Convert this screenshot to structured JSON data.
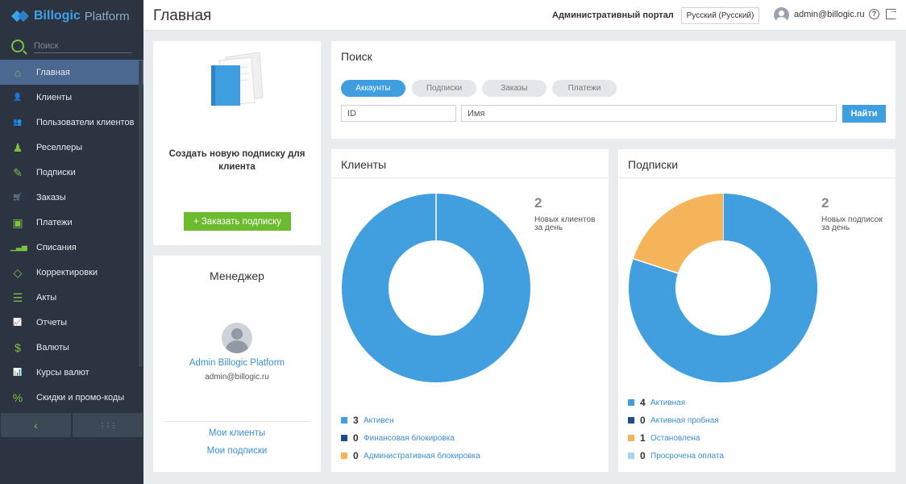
{
  "sidebar": {
    "logo_brand": "Billogic",
    "logo_product": "Platform",
    "search_placeholder": "Поиск",
    "items": [
      {
        "label": "Главная",
        "icon": "home-icon",
        "glyph": "⌂"
      },
      {
        "label": "Клиенты",
        "icon": "user-icon",
        "glyph": "👤"
      },
      {
        "label": "Пользователи клиентов",
        "icon": "users-icon",
        "glyph": "👥"
      },
      {
        "label": "Реселлеры",
        "icon": "reseller-icon",
        "glyph": "♟"
      },
      {
        "label": "Подписки",
        "icon": "subscription-icon",
        "glyph": "✎"
      },
      {
        "label": "Заказы",
        "icon": "cart-icon",
        "glyph": "🛒"
      },
      {
        "label": "Платежи",
        "icon": "wallet-icon",
        "glyph": "▣"
      },
      {
        "label": "Списания",
        "icon": "bars-icon",
        "glyph": "▁▃▅"
      },
      {
        "label": "Корректировки",
        "icon": "eraser-icon",
        "glyph": "◇"
      },
      {
        "label": "Акты",
        "icon": "document-list-icon",
        "glyph": "☰"
      },
      {
        "label": "Отчеты",
        "icon": "line-chart-icon",
        "glyph": "📈"
      },
      {
        "label": "Валюты",
        "icon": "dollar-icon",
        "glyph": "$"
      },
      {
        "label": "Курсы валют",
        "icon": "exchange-chart-icon",
        "glyph": "📊"
      },
      {
        "label": "Скидки и промо-коды",
        "icon": "percent-icon",
        "glyph": "%"
      }
    ],
    "footer_left_glyph": "‹",
    "footer_right_glyph": "⋮⋮⋮"
  },
  "header": {
    "title": "Главная",
    "portal": "Административный портал",
    "language": "Русский (Русский)",
    "user_email": "admin@billogic.ru",
    "help_glyph": "?"
  },
  "create_card": {
    "text": "Создать новую подписку для клиента",
    "button": "+ Заказать подписку"
  },
  "manager": {
    "title": "Менеджер",
    "name": "Admin Billogic Platform",
    "email": "admin@billogic.ru",
    "link_clients": "Мои клиенты",
    "link_subscriptions": "Мои подписки"
  },
  "search": {
    "title": "Поиск",
    "tabs": [
      "Аккаунты",
      "Подписки",
      "Заказы",
      "Платежи"
    ],
    "active_tab": 0,
    "id_placeholder": "ID",
    "name_placeholder": "Имя",
    "button": "Найти"
  },
  "clients": {
    "title": "Клиенты",
    "kpi_value": "2",
    "kpi_label": "Новых клиентов за день",
    "legend": [
      {
        "count": "3",
        "label": "Активен",
        "color": "#419fdf"
      },
      {
        "count": "0",
        "label": "Финансовая блокировка",
        "color": "#1f4e8c"
      },
      {
        "count": "0",
        "label": "Административная блокировка",
        "color": "#f5b45a"
      }
    ]
  },
  "subscriptions": {
    "title": "Подписки",
    "kpi_value": "2",
    "kpi_label": "Новых подписок за день",
    "legend": [
      {
        "count": "4",
        "label": "Активная",
        "color": "#419fdf"
      },
      {
        "count": "0",
        "label": "Активная пробная",
        "color": "#1f4e8c"
      },
      {
        "count": "1",
        "label": "Остановлена",
        "color": "#f5b45a"
      },
      {
        "count": "0",
        "label": "Просрочена оплата",
        "color": "#a8d4ef"
      }
    ]
  },
  "colors": {
    "accent_blue": "#3e9ee0",
    "accent_green": "#6cbb2e",
    "sidebar_bg": "#2b3440",
    "sidebar_active": "#4a6890"
  }
}
